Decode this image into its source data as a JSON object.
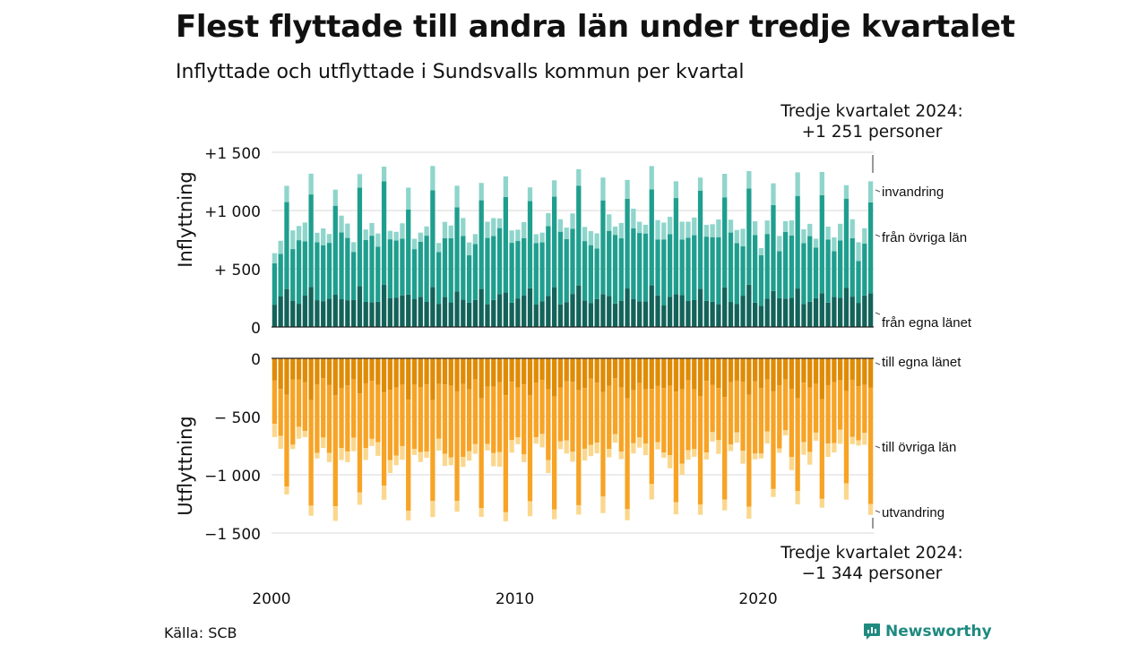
{
  "title": "Flest flyttade till andra län under tredje kvartalet",
  "subtitle": "Inflyttade och utflyttade i Sundsvalls kommun per kvartal",
  "source": "Källa: SCB",
  "brand": {
    "name": "Newsworthy",
    "icon": "newsworthy-logo-icon"
  },
  "annotations": {
    "top_line1": "Tredje kvartalet 2024:",
    "top_line2": "+1 251 personer",
    "bottom_line1": "Tredje kvartalet 2024:",
    "bottom_line2": "−1 344 personer"
  },
  "colors": {
    "in_egna": "#13635a",
    "in_ovriga": "#1f9e8e",
    "in_invandring": "#8fd5cb",
    "out_egna": "#e08b05",
    "out_ovriga": "#f7a325",
    "out_utvandring": "#fbd78d",
    "grid": "#d9d9d9",
    "axis": "#222222"
  },
  "chart_data": {
    "type": "bar",
    "stacked": true,
    "x_start": "2000 Q1",
    "x_end": "2024 Q3",
    "x_ticks": [
      "2000",
      "2010",
      "2020"
    ],
    "panels": [
      {
        "name": "Inflyttning",
        "ylabel": "Inflyttning",
        "ylim": [
          0,
          1500
        ],
        "yticks": [
          0,
          500,
          1000,
          1500
        ],
        "ytick_labels": [
          "0",
          "+ 500",
          "+1 000",
          "+1 500"
        ],
        "series": [
          {
            "name": "från egna länet",
            "label": "från egna länet"
          },
          {
            "name": "från övriga län",
            "label": "från övriga län"
          },
          {
            "name": "invandring",
            "label": "invandring"
          }
        ],
        "quarterly_pattern_approx": {
          "Q1": [
            220,
            450,
            110
          ],
          "Q2": [
            240,
            450,
            120
          ],
          "Q3": [
            320,
            770,
            160
          ],
          "Q4": [
            230,
            470,
            120
          ]
        },
        "last_value": {
          "period": "2024 Q3",
          "total": 1251,
          "values": [
            290,
            780,
            181
          ]
        }
      },
      {
        "name": "Utflyttning",
        "ylabel": "Utflyttning",
        "ylim": [
          -1500,
          0
        ],
        "yticks": [
          0,
          -500,
          -1000,
          -1500
        ],
        "ytick_labels": [
          "0",
          "− 500",
          "−1 000",
          "−1 500"
        ],
        "series": [
          {
            "name": "till egna länet",
            "label": "till egna länet"
          },
          {
            "name": "till övriga län",
            "label": "till övriga län"
          },
          {
            "name": "utvandring",
            "label": "utvandring"
          }
        ],
        "quarterly_pattern_approx": {
          "Q1": [
            -220,
            -460,
            -60
          ],
          "Q2": [
            -230,
            -470,
            -70
          ],
          "Q3": [
            -310,
            -860,
            -90
          ],
          "Q4": [
            -230,
            -490,
            -60
          ]
        },
        "last_value": {
          "period": "2024 Q3",
          "total": -1344,
          "values": [
            -250,
            -1000,
            -94
          ]
        }
      }
    ],
    "grid": true,
    "legend": "direct labels at right end"
  }
}
